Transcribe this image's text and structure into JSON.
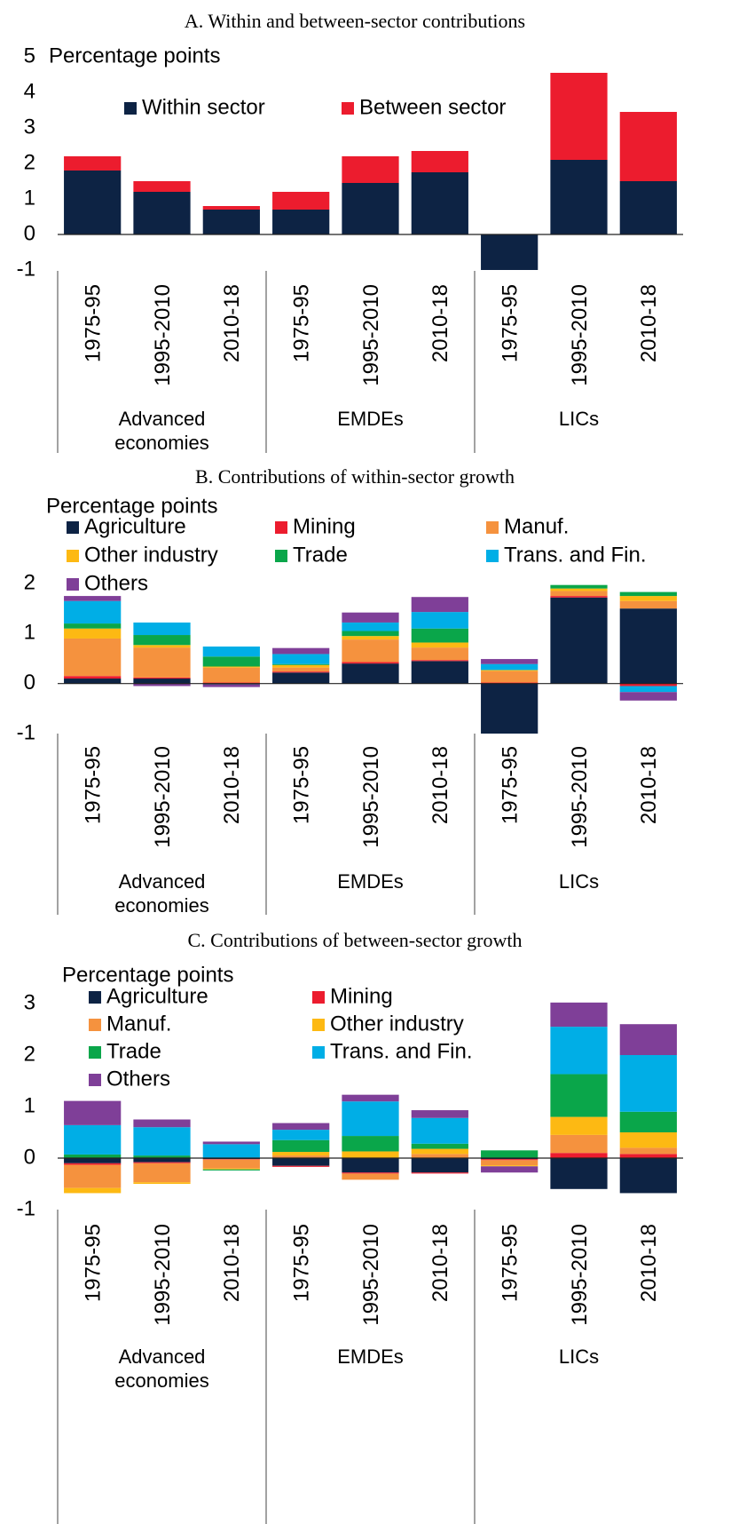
{
  "chart_data": [
    {
      "type": "bar",
      "stacked": true,
      "title": "A. Within and between-sector contributions",
      "y_label": "Percentage points",
      "categories": [
        "1975-95",
        "1995-2010",
        "2010-18",
        "1975-95",
        "1995-2010",
        "2010-18",
        "1975-95",
        "1995-2010",
        "2010-18"
      ],
      "groups": [
        "Advanced economies",
        "EMDEs",
        "LICs"
      ],
      "series": [
        {
          "name": "Within sector",
          "color": "#0d2344",
          "values": [
            1.8,
            1.2,
            0.7,
            0.7,
            1.45,
            1.75,
            -1.0,
            2.1,
            1.5
          ]
        },
        {
          "name": "Between sector",
          "color": "#ec1c2e",
          "values": [
            0.4,
            0.3,
            0.1,
            0.5,
            0.75,
            0.6,
            0,
            2.45,
            1.95
          ]
        }
      ],
      "ylim": [
        -1,
        5
      ],
      "yticks": [
        -1,
        0,
        1,
        2,
        3,
        4,
        5
      ]
    },
    {
      "type": "bar",
      "stacked": true,
      "title": "B. Contributions of within-sector growth",
      "y_label": "Percentage points",
      "categories": [
        "1975-95",
        "1995-2010",
        "2010-18",
        "1975-95",
        "1995-2010",
        "2010-18",
        "1975-95",
        "1995-2010",
        "2010-18"
      ],
      "groups": [
        "Advanced economies",
        "EMDEs",
        "LICs"
      ],
      "series": [
        {
          "name": "Agriculture",
          "color": "#0d2344",
          "values": [
            0.1,
            0.1,
            -0.02,
            0.22,
            0.4,
            0.45,
            -1.0,
            1.72,
            1.5
          ]
        },
        {
          "name": "Mining",
          "color": "#ec1c2e",
          "values": [
            0.05,
            0.02,
            0.02,
            0.02,
            0.03,
            0.02,
            0.02,
            0.03,
            -0.05
          ]
        },
        {
          "name": "Manuf.",
          "color": "#f5923e",
          "values": [
            0.75,
            0.6,
            0.3,
            0.08,
            0.45,
            0.25,
            0.23,
            0.1,
            0.15
          ]
        },
        {
          "name": "Other industry",
          "color": "#fdb913",
          "values": [
            0.2,
            0.05,
            0.02,
            0.05,
            0.07,
            0.1,
            0.02,
            0.05,
            0.1
          ]
        },
        {
          "name": "Trade",
          "color": "#0aa64a",
          "values": [
            0.1,
            0.2,
            0.2,
            0.02,
            0.1,
            0.28,
            0,
            0.07,
            0.08
          ]
        },
        {
          "name": "Trans. and Fin.",
          "color": "#00aee6",
          "values": [
            0.45,
            0.25,
            0.2,
            0.2,
            0.17,
            0.33,
            0.12,
            0,
            -0.12
          ]
        },
        {
          "name": "Others",
          "color": "#7f3f98",
          "values": [
            0.1,
            -0.05,
            -0.05,
            0.12,
            0.2,
            0.3,
            0.1,
            0,
            -0.17
          ]
        }
      ],
      "ylim": [
        -1,
        2
      ],
      "yticks": [
        -1,
        0,
        1,
        2
      ]
    },
    {
      "type": "bar",
      "stacked": true,
      "title": "C. Contributions of between-sector growth",
      "y_label": "Percentage points",
      "categories": [
        "1975-95",
        "1995-2010",
        "2010-18",
        "1975-95",
        "1995-2010",
        "2010-18",
        "1975-95",
        "1995-2010",
        "2010-18"
      ],
      "groups": [
        "Advanced economies",
        "EMDEs",
        "LICs"
      ],
      "series": [
        {
          "name": "Agriculture",
          "color": "#0d2344",
          "values": [
            -0.1,
            -0.08,
            -0.02,
            -0.15,
            -0.28,
            -0.28,
            -0.02,
            -0.6,
            -0.68
          ]
        },
        {
          "name": "Mining",
          "color": "#ec1c2e",
          "values": [
            -0.03,
            -0.02,
            -0.01,
            -0.02,
            -0.02,
            -0.02,
            -0.02,
            0.1,
            0.08
          ]
        },
        {
          "name": "Manuf.",
          "color": "#f5923e",
          "values": [
            -0.45,
            -0.37,
            -0.17,
            0.05,
            -0.12,
            0.08,
            -0.1,
            0.35,
            0.12
          ]
        },
        {
          "name": "Other industry",
          "color": "#fdb913",
          "values": [
            -0.1,
            -0.03,
            -0.02,
            0.07,
            0.13,
            0.1,
            -0.02,
            0.35,
            0.3
          ]
        },
        {
          "name": "Trade",
          "color": "#0aa64a",
          "values": [
            0.07,
            0.05,
            -0.02,
            0.23,
            0.3,
            0.1,
            0.15,
            0.83,
            0.4
          ]
        },
        {
          "name": "Trans. and Fin.",
          "color": "#00aee6",
          "values": [
            0.57,
            0.55,
            0.27,
            0.2,
            0.67,
            0.5,
            0,
            0.92,
            1.1
          ]
        },
        {
          "name": "Others",
          "color": "#7f3f98",
          "values": [
            0.47,
            0.15,
            0.05,
            0.13,
            0.13,
            0.15,
            -0.12,
            0.47,
            0.6
          ]
        }
      ],
      "ylim": [
        -1,
        3
      ],
      "yticks": [
        -1,
        0,
        1,
        2,
        3
      ]
    }
  ]
}
